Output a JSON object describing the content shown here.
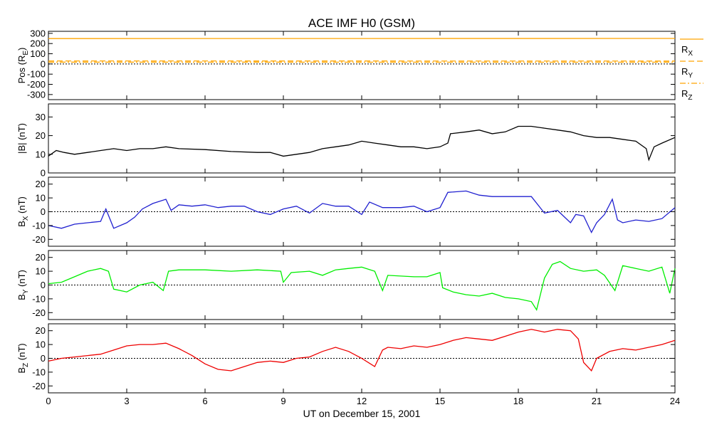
{
  "chart_data": {
    "type": "line",
    "title": "ACE IMF H0 (GSM)",
    "xlabel": "UT on December 15, 2001",
    "x_range": [
      0,
      24
    ],
    "x_ticks": [
      0,
      3,
      6,
      9,
      12,
      15,
      18,
      21,
      24
    ],
    "panels": [
      {
        "id": "pos",
        "ylabel_main": "Pos (R",
        "ylabel_sub": "E",
        "ylabel_end": ")",
        "ylim": [
          -350,
          320
        ],
        "y_ticks": [
          300,
          200,
          100,
          0,
          -100,
          -200,
          -300
        ],
        "zero_line": true,
        "series": [
          {
            "name": "R",
            "sub": "X",
            "color": "#ffa500",
            "dash": "",
            "points": [
              [
                0,
                249
              ],
              [
                24,
                250
              ]
            ]
          },
          {
            "name": "R",
            "sub": "Y",
            "color": "#ffa500",
            "dash": "8,4",
            "points": [
              [
                0,
                30
              ],
              [
                24,
                28
              ]
            ]
          },
          {
            "name": "R",
            "sub": "Z",
            "color": "#ffa500",
            "dash": "8,3,2,3",
            "points": [
              [
                0,
                18
              ],
              [
                24,
                17
              ]
            ]
          }
        ]
      },
      {
        "id": "bt",
        "ylabel_main": "|B| (nT)",
        "ylim": [
          0,
          37
        ],
        "y_ticks": [
          30,
          20,
          10,
          0
        ],
        "zero_line": false,
        "series": [
          {
            "name": "|B|",
            "color": "#000000",
            "points": [
              [
                0,
                9
              ],
              [
                0.3,
                12
              ],
              [
                0.6,
                11
              ],
              [
                1.0,
                10
              ],
              [
                1.5,
                11
              ],
              [
                2.0,
                12
              ],
              [
                2.5,
                13
              ],
              [
                3.0,
                12
              ],
              [
                3.5,
                13
              ],
              [
                4.0,
                13
              ],
              [
                4.5,
                14
              ],
              [
                5.0,
                13
              ],
              [
                6.0,
                12.5
              ],
              [
                7.0,
                11.5
              ],
              [
                8.0,
                11
              ],
              [
                8.5,
                11
              ],
              [
                9.0,
                9
              ],
              [
                9.5,
                10
              ],
              [
                10.0,
                11
              ],
              [
                10.5,
                13
              ],
              [
                11.0,
                14
              ],
              [
                11.5,
                15
              ],
              [
                12.0,
                17
              ],
              [
                12.5,
                16
              ],
              [
                13.0,
                15
              ],
              [
                13.5,
                14
              ],
              [
                14.0,
                14
              ],
              [
                14.5,
                13
              ],
              [
                15.0,
                14
              ],
              [
                15.3,
                16
              ],
              [
                15.4,
                21
              ],
              [
                16.0,
                22
              ],
              [
                16.5,
                23
              ],
              [
                17.0,
                21
              ],
              [
                17.5,
                22
              ],
              [
                18.0,
                25
              ],
              [
                18.5,
                25
              ],
              [
                19.0,
                24
              ],
              [
                19.5,
                23
              ],
              [
                20.0,
                22
              ],
              [
                20.5,
                20
              ],
              [
                21.0,
                19
              ],
              [
                21.5,
                19
              ],
              [
                22.0,
                18
              ],
              [
                22.5,
                17
              ],
              [
                22.9,
                13
              ],
              [
                23.0,
                7
              ],
              [
                23.2,
                14
              ],
              [
                23.5,
                16
              ],
              [
                24.0,
                19
              ]
            ]
          }
        ]
      },
      {
        "id": "bx",
        "ylabel_main": "B",
        "ylabel_sub": "X",
        "ylabel_end": " (nT)",
        "ylim": [
          -25,
          25
        ],
        "y_ticks": [
          20,
          10,
          0,
          -10,
          -20
        ],
        "zero_line": true,
        "series": [
          {
            "name": "B_X",
            "color": "#2020d0",
            "points": [
              [
                0,
                -10
              ],
              [
                0.5,
                -12
              ],
              [
                1.0,
                -9
              ],
              [
                1.5,
                -8
              ],
              [
                2.0,
                -7
              ],
              [
                2.2,
                2
              ],
              [
                2.5,
                -12
              ],
              [
                3.0,
                -8
              ],
              [
                3.3,
                -4
              ],
              [
                3.6,
                2
              ],
              [
                4.0,
                6
              ],
              [
                4.5,
                9
              ],
              [
                4.7,
                1
              ],
              [
                5.0,
                5
              ],
              [
                5.5,
                4
              ],
              [
                6.0,
                5
              ],
              [
                6.5,
                3
              ],
              [
                7.0,
                4
              ],
              [
                7.5,
                4
              ],
              [
                8.0,
                0
              ],
              [
                8.5,
                -2
              ],
              [
                9.0,
                2
              ],
              [
                9.5,
                4
              ],
              [
                10.0,
                -1
              ],
              [
                10.5,
                6
              ],
              [
                11.0,
                4
              ],
              [
                11.5,
                4
              ],
              [
                12.0,
                -2
              ],
              [
                12.3,
                7
              ],
              [
                12.8,
                3
              ],
              [
                13.5,
                3
              ],
              [
                14.0,
                4
              ],
              [
                14.5,
                0
              ],
              [
                15.0,
                3
              ],
              [
                15.3,
                14
              ],
              [
                16.0,
                15
              ],
              [
                16.5,
                12
              ],
              [
                17.0,
                11
              ],
              [
                17.5,
                11
              ],
              [
                18.0,
                11
              ],
              [
                18.5,
                11
              ],
              [
                19.0,
                -1
              ],
              [
                19.5,
                1
              ],
              [
                20.0,
                -8
              ],
              [
                20.2,
                -2
              ],
              [
                20.5,
                -3
              ],
              [
                20.8,
                -15
              ],
              [
                21.0,
                -8
              ],
              [
                21.3,
                -2
              ],
              [
                21.6,
                9
              ],
              [
                21.8,
                -6
              ],
              [
                22.0,
                -8
              ],
              [
                22.5,
                -6
              ],
              [
                23.0,
                -7
              ],
              [
                23.5,
                -5
              ],
              [
                24.0,
                3
              ]
            ]
          }
        ]
      },
      {
        "id": "by",
        "ylabel_main": "B",
        "ylabel_sub": "Y",
        "ylabel_end": " (nT)",
        "ylim": [
          -25,
          25
        ],
        "y_ticks": [
          20,
          10,
          0,
          -10,
          -20
        ],
        "zero_line": true,
        "series": [
          {
            "name": "B_Y",
            "color": "#00ee00",
            "points": [
              [
                0,
                1
              ],
              [
                0.5,
                2
              ],
              [
                1.0,
                6
              ],
              [
                1.5,
                10
              ],
              [
                2.0,
                12
              ],
              [
                2.3,
                10
              ],
              [
                2.5,
                -3
              ],
              [
                3.0,
                -5
              ],
              [
                3.5,
                0
              ],
              [
                4.0,
                2
              ],
              [
                4.4,
                -4
              ],
              [
                4.6,
                10
              ],
              [
                5.0,
                11
              ],
              [
                6.0,
                11
              ],
              [
                7.0,
                10
              ],
              [
                8.0,
                11
              ],
              [
                8.9,
                10
              ],
              [
                9.0,
                2
              ],
              [
                9.3,
                9
              ],
              [
                10.0,
                10
              ],
              [
                10.5,
                7
              ],
              [
                11.0,
                11
              ],
              [
                11.5,
                12
              ],
              [
                12.0,
                13
              ],
              [
                12.5,
                10
              ],
              [
                12.8,
                -4
              ],
              [
                13.0,
                7
              ],
              [
                14.0,
                6
              ],
              [
                14.5,
                6
              ],
              [
                15.0,
                9
              ],
              [
                15.1,
                -2
              ],
              [
                15.5,
                -5
              ],
              [
                16.0,
                -7
              ],
              [
                16.5,
                -8
              ],
              [
                17.0,
                -6
              ],
              [
                17.5,
                -9
              ],
              [
                18.0,
                -10
              ],
              [
                18.5,
                -12
              ],
              [
                18.7,
                -18
              ],
              [
                19.0,
                5
              ],
              [
                19.3,
                15
              ],
              [
                19.6,
                17
              ],
              [
                20.0,
                12
              ],
              [
                20.5,
                10
              ],
              [
                21.0,
                11
              ],
              [
                21.3,
                7
              ],
              [
                21.7,
                -4
              ],
              [
                22.0,
                14
              ],
              [
                22.5,
                12
              ],
              [
                23.0,
                10
              ],
              [
                23.5,
                13
              ],
              [
                23.8,
                -6
              ],
              [
                24.0,
                12
              ]
            ]
          }
        ]
      },
      {
        "id": "bz",
        "ylabel_main": "B",
        "ylabel_sub": "Z",
        "ylabel_end": " (nT)",
        "ylim": [
          -25,
          25
        ],
        "y_ticks": [
          20,
          10,
          0,
          -10,
          -20
        ],
        "zero_line": true,
        "series": [
          {
            "name": "B_Z",
            "color": "#ee0000",
            "points": [
              [
                0,
                -2
              ],
              [
                0.5,
                0
              ],
              [
                1.0,
                1
              ],
              [
                1.5,
                2
              ],
              [
                2.0,
                3
              ],
              [
                2.5,
                6
              ],
              [
                3.0,
                9
              ],
              [
                3.5,
                10
              ],
              [
                4.0,
                10
              ],
              [
                4.5,
                11
              ],
              [
                5.0,
                7
              ],
              [
                5.5,
                2
              ],
              [
                6.0,
                -4
              ],
              [
                6.5,
                -8
              ],
              [
                7.0,
                -9
              ],
              [
                7.5,
                -6
              ],
              [
                8.0,
                -3
              ],
              [
                8.5,
                -2
              ],
              [
                9.0,
                -3
              ],
              [
                9.5,
                0
              ],
              [
                10.0,
                1
              ],
              [
                10.5,
                5
              ],
              [
                11.0,
                8
              ],
              [
                11.5,
                5
              ],
              [
                12.0,
                0
              ],
              [
                12.5,
                -6
              ],
              [
                12.8,
                6
              ],
              [
                13.0,
                8
              ],
              [
                13.5,
                7
              ],
              [
                14.0,
                9
              ],
              [
                14.5,
                8
              ],
              [
                15.0,
                10
              ],
              [
                15.5,
                13
              ],
              [
                16.0,
                15
              ],
              [
                16.5,
                14
              ],
              [
                17.0,
                13
              ],
              [
                17.5,
                16
              ],
              [
                18.0,
                19
              ],
              [
                18.5,
                21
              ],
              [
                19.0,
                19
              ],
              [
                19.5,
                21
              ],
              [
                20.0,
                20
              ],
              [
                20.3,
                14
              ],
              [
                20.5,
                -3
              ],
              [
                20.8,
                -9
              ],
              [
                21.0,
                0
              ],
              [
                21.5,
                5
              ],
              [
                22.0,
                7
              ],
              [
                22.5,
                6
              ],
              [
                23.0,
                8
              ],
              [
                23.5,
                10
              ],
              [
                24.0,
                13
              ]
            ]
          }
        ]
      }
    ]
  }
}
